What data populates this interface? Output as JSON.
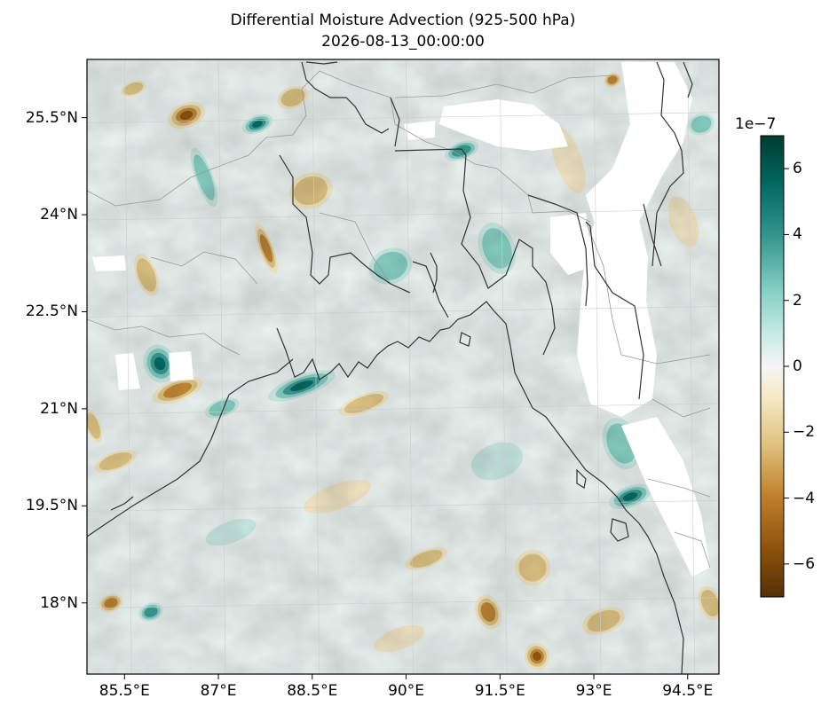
{
  "figure": {
    "title": "Differential Moisture Advection (925-500 hPa)",
    "subtitle": "2026-08-13_00:00:00"
  },
  "map": {
    "lon_range": [
      84.9,
      95.0
    ],
    "lat_range": [
      16.9,
      26.4
    ],
    "lon_ticks": [
      {
        "value": 85.5,
        "label": "85.5°E"
      },
      {
        "value": 87.0,
        "label": "87°E"
      },
      {
        "value": 88.5,
        "label": "88.5°E"
      },
      {
        "value": 90.0,
        "label": "90°E"
      },
      {
        "value": 91.5,
        "label": "91.5°E"
      },
      {
        "value": 93.0,
        "label": "93°E"
      },
      {
        "value": 94.5,
        "label": "94.5°E"
      }
    ],
    "lat_ticks": [
      {
        "value": 25.5,
        "label": "25.5°N"
      },
      {
        "value": 24.0,
        "label": "24°N"
      },
      {
        "value": 22.5,
        "label": "22.5°N"
      },
      {
        "value": 21.0,
        "label": "21°N"
      },
      {
        "value": 19.5,
        "label": "19.5°N"
      },
      {
        "value": 18.0,
        "label": "18°N"
      }
    ],
    "colormap": "BrBG",
    "gridlines": true,
    "missing_data_color": "#ffffff",
    "coastline_color": "#333333",
    "border_color": "#999999"
  },
  "colorbar": {
    "multiplier": "1e−7",
    "range": [
      -7,
      7
    ],
    "ticks": [
      {
        "value": 6,
        "label": "6"
      },
      {
        "value": 4,
        "label": "4"
      },
      {
        "value": 2,
        "label": "2"
      },
      {
        "value": 0,
        "label": "0"
      },
      {
        "value": -2,
        "label": "−2"
      },
      {
        "value": -4,
        "label": "−4"
      },
      {
        "value": -6,
        "label": "−6"
      }
    ]
  }
}
